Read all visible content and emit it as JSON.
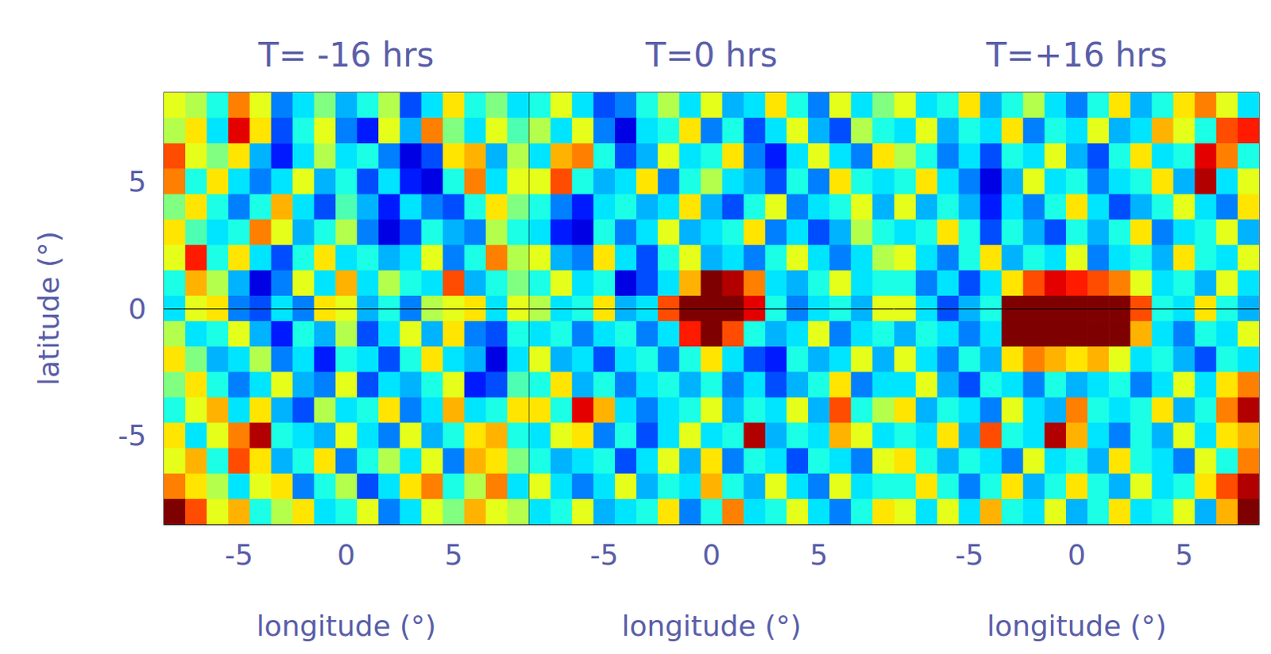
{
  "chart_data": [
    {
      "type": "heatmap",
      "title": "T= -16 hrs",
      "xlabel": "longitude (°)",
      "ylabel": "latitude (°)",
      "xlim": [
        -8.5,
        8.5
      ],
      "ylim": [
        -8.5,
        8.5
      ],
      "xticks": [
        -5,
        0,
        5
      ],
      "yticks": [
        -5,
        0,
        5
      ],
      "tick_labels": true,
      "hline": 0,
      "zlim": [
        -1,
        1
      ],
      "x": [
        -8,
        -7,
        -6,
        -5,
        -4,
        -3,
        -2,
        -1,
        0,
        1,
        2,
        3,
        4,
        5,
        6,
        7,
        8
      ],
      "y": [
        8,
        7,
        6,
        5,
        4,
        3,
        2,
        1,
        0,
        -1,
        -2,
        -3,
        -4,
        -5,
        -6,
        -7,
        -8
      ],
      "z": [
        [
          0.2,
          0.1,
          -0.2,
          0.5,
          0.2,
          -0.5,
          -0.3,
          0.0,
          -0.4,
          -0.2,
          0.1,
          -0.6,
          -0.3,
          0.3,
          -0.2,
          0.0,
          -0.3
        ],
        [
          0.1,
          0.3,
          -0.3,
          0.8,
          0.3,
          -0.6,
          -0.2,
          0.2,
          -0.5,
          -0.7,
          0.2,
          -0.4,
          0.5,
          0.0,
          -0.3,
          0.2,
          -0.1
        ],
        [
          0.6,
          0.2,
          0.0,
          0.3,
          -0.4,
          -0.7,
          -0.3,
          0.1,
          -0.3,
          -0.2,
          -0.5,
          -0.8,
          -0.6,
          0.3,
          0.4,
          -0.4,
          0.1
        ],
        [
          0.5,
          -0.2,
          0.3,
          -0.3,
          -0.5,
          -0.3,
          0.2,
          -0.4,
          -0.2,
          -0.6,
          -0.3,
          -0.7,
          -0.8,
          -0.2,
          0.5,
          -0.3,
          0.2
        ],
        [
          0.0,
          0.3,
          -0.2,
          -0.5,
          -0.2,
          0.4,
          -0.3,
          -0.6,
          -0.1,
          -0.4,
          -0.7,
          -0.3,
          -0.5,
          -0.6,
          -0.2,
          0.3,
          0.0
        ],
        [
          0.3,
          -0.1,
          -0.3,
          -0.2,
          0.5,
          0.2,
          -0.4,
          -0.2,
          0.1,
          -0.5,
          -0.8,
          -0.6,
          -0.2,
          -0.4,
          -0.5,
          0.1,
          -0.2
        ],
        [
          0.2,
          0.7,
          -0.2,
          0.3,
          -0.3,
          -0.6,
          -0.2,
          0.3,
          -0.3,
          -0.2,
          -0.4,
          -0.3,
          0.2,
          -0.5,
          -0.2,
          0.5,
          0.1
        ],
        [
          -0.2,
          0.4,
          0.1,
          -0.4,
          -0.8,
          -0.5,
          0.2,
          -0.3,
          0.4,
          -0.3,
          0.1,
          -0.2,
          -0.3,
          0.6,
          -0.4,
          -0.2,
          0.0
        ],
        [
          -0.3,
          0.2,
          0.3,
          -0.5,
          -0.6,
          -0.3,
          -0.5,
          0.3,
          0.2,
          -0.4,
          -0.2,
          -0.5,
          0.1,
          0.2,
          0.3,
          -0.3,
          0.2
        ],
        [
          0.1,
          -0.3,
          -0.2,
          0.2,
          -0.4,
          -0.7,
          -0.2,
          -0.4,
          0.1,
          -0.6,
          -0.3,
          0.2,
          -0.4,
          0.3,
          -0.5,
          -0.6,
          -0.2
        ],
        [
          0.3,
          0.0,
          -0.4,
          -0.3,
          0.1,
          -0.5,
          -0.3,
          -0.7,
          -0.2,
          -0.3,
          -0.6,
          -0.2,
          0.3,
          -0.3,
          -0.4,
          -0.8,
          -0.3
        ],
        [
          0.0,
          0.3,
          -0.2,
          -0.5,
          -0.3,
          0.2,
          -0.4,
          -0.5,
          0.2,
          -0.6,
          -0.3,
          -0.4,
          -0.2,
          0.2,
          -0.7,
          -0.6,
          -0.1
        ],
        [
          -0.2,
          0.2,
          0.4,
          -0.3,
          0.3,
          -0.4,
          -0.6,
          0.1,
          -0.3,
          -0.2,
          0.3,
          -0.5,
          -0.3,
          0.4,
          -0.3,
          -0.2,
          0.3
        ],
        [
          0.3,
          -0.3,
          0.2,
          0.5,
          0.9,
          -0.2,
          -0.3,
          -0.4,
          0.2,
          -0.3,
          -0.5,
          0.2,
          -0.4,
          -0.2,
          0.3,
          0.4,
          -0.2
        ],
        [
          0.2,
          0.4,
          -0.2,
          0.6,
          0.3,
          -0.4,
          -0.2,
          0.3,
          -0.5,
          -0.2,
          0.1,
          -0.3,
          0.2,
          -0.5,
          0.4,
          0.3,
          0.0
        ],
        [
          0.5,
          0.3,
          0.1,
          -0.3,
          0.2,
          0.3,
          -0.5,
          -0.2,
          0.1,
          -0.6,
          -0.3,
          0.3,
          0.5,
          -0.2,
          0.1,
          0.5,
          -0.3
        ],
        [
          1.0,
          0.6,
          0.2,
          0.4,
          -0.2,
          0.1,
          0.3,
          -0.3,
          -0.2,
          0.2,
          -0.5,
          -0.3,
          0.2,
          0.0,
          0.4,
          0.2,
          0.1
        ]
      ]
    },
    {
      "type": "heatmap",
      "title": "T=0 hrs",
      "xlabel": "longitude (°)",
      "xlim": [
        -8.5,
        8.5
      ],
      "ylim": [
        -8.5,
        8.5
      ],
      "xticks": [
        -5,
        0,
        5
      ],
      "yticks": [
        -5,
        0,
        5
      ],
      "tick_labels": "x",
      "hline": 0,
      "zlim": [
        -1,
        1
      ],
      "x": [
        -8,
        -7,
        -6,
        -5,
        -4,
        -3,
        -2,
        -1,
        0,
        1,
        2,
        3,
        4,
        5,
        6,
        7,
        8
      ],
      "y": [
        8,
        7,
        6,
        5,
        4,
        3,
        2,
        1,
        0,
        -1,
        -2,
        -3,
        -4,
        -5,
        -6,
        -7,
        -8
      ],
      "z": [
        [
          -0.2,
          0.2,
          -0.3,
          -0.6,
          -0.5,
          -0.2,
          0.1,
          -0.3,
          0.2,
          -0.4,
          -0.3,
          0.3,
          -0.2,
          -0.5,
          0.2,
          -0.3,
          0.0
        ],
        [
          0.1,
          -0.3,
          0.2,
          -0.5,
          -0.8,
          -0.3,
          -0.2,
          0.3,
          -0.5,
          -0.2,
          -0.6,
          -0.3,
          0.2,
          -0.4,
          -0.6,
          0.1,
          -0.2
        ],
        [
          -0.3,
          0.4,
          0.5,
          -0.2,
          -0.6,
          -0.4,
          0.2,
          -0.3,
          -0.2,
          0.3,
          -0.5,
          -0.7,
          -0.3,
          0.2,
          -0.3,
          -0.5,
          0.3
        ],
        [
          0.2,
          0.6,
          -0.2,
          -0.4,
          -0.3,
          0.3,
          -0.5,
          -0.2,
          0.1,
          -0.3,
          -0.4,
          -0.6,
          -0.2,
          -0.5,
          0.3,
          -0.2,
          -0.3
        ],
        [
          -0.2,
          -0.5,
          -0.7,
          -0.3,
          -0.2,
          -0.4,
          -0.3,
          0.3,
          -0.4,
          -0.6,
          -0.2,
          0.2,
          -0.5,
          -0.3,
          -0.2,
          0.2,
          -0.4
        ],
        [
          -0.3,
          -0.7,
          -0.8,
          -0.2,
          -0.5,
          -0.3,
          0.2,
          -0.4,
          -0.3,
          -0.2,
          0.3,
          -0.5,
          -0.3,
          -0.6,
          -0.4,
          0.1,
          -0.2
        ],
        [
          0.2,
          -0.4,
          -0.5,
          0.3,
          -0.3,
          -0.6,
          -0.2,
          0.2,
          -0.4,
          -0.3,
          -0.5,
          -0.2,
          0.2,
          -0.3,
          -0.5,
          -0.3,
          0.1
        ],
        [
          -0.2,
          0.2,
          -0.3,
          -0.2,
          -0.8,
          -0.6,
          -0.3,
          0.4,
          1.0,
          0.9,
          0.5,
          -0.3,
          -0.4,
          -0.2,
          0.2,
          -0.3,
          -0.2
        ],
        [
          0.1,
          -0.3,
          -0.2,
          0.3,
          -0.4,
          -0.3,
          0.6,
          1.0,
          1.0,
          1.0,
          0.8,
          -0.2,
          -0.5,
          -0.3,
          -0.2,
          -0.4,
          0.2
        ],
        [
          -0.3,
          -0.2,
          -0.5,
          -0.3,
          -0.2,
          -0.5,
          -0.3,
          0.7,
          1.0,
          0.6,
          -0.2,
          -0.4,
          -0.3,
          0.2,
          -0.5,
          -0.3,
          -0.2
        ],
        [
          0.2,
          -0.4,
          -0.3,
          -0.6,
          -0.3,
          -0.2,
          -0.5,
          -0.2,
          0.3,
          -0.3,
          -0.6,
          -0.7,
          -0.2,
          -0.4,
          -0.3,
          0.2,
          -0.4
        ],
        [
          -0.2,
          0.3,
          -0.4,
          -0.2,
          -0.5,
          -0.3,
          -0.2,
          -0.4,
          -0.2,
          -0.5,
          -0.3,
          -0.6,
          -0.4,
          -0.2,
          0.3,
          -0.5,
          -0.3
        ],
        [
          0.3,
          -0.2,
          0.8,
          0.4,
          -0.3,
          -0.5,
          -0.3,
          -0.2,
          0.2,
          -0.4,
          -0.2,
          -0.3,
          0.2,
          -0.4,
          0.6,
          -0.2,
          0.1
        ],
        [
          -0.3,
          0.2,
          0.3,
          -0.5,
          -0.2,
          -0.6,
          -0.3,
          0.2,
          -0.3,
          -0.2,
          0.9,
          -0.4,
          -0.2,
          -0.3,
          0.4,
          0.2,
          -0.3
        ],
        [
          -0.2,
          -0.4,
          -0.3,
          -0.2,
          -0.6,
          -0.3,
          0.2,
          -0.4,
          0.3,
          -0.5,
          -0.2,
          -0.3,
          -0.6,
          -0.2,
          -0.3,
          -0.5,
          0.2
        ],
        [
          0.2,
          -0.3,
          -0.5,
          -0.3,
          0.2,
          -0.4,
          -0.2,
          -0.3,
          0.4,
          -0.2,
          -0.4,
          0.2,
          -0.3,
          -0.5,
          0.2,
          -0.3,
          -0.2
        ],
        [
          -0.3,
          -0.2,
          0.2,
          -0.4,
          -0.3,
          -0.2,
          0.3,
          -0.5,
          -0.2,
          0.5,
          -0.3,
          -0.2,
          0.2,
          -0.3,
          -0.5,
          -0.2,
          0.3
        ]
      ]
    },
    {
      "type": "heatmap",
      "title": "T=+16 hrs",
      "xlabel": "longitude (°)",
      "xlim": [
        -8.5,
        8.5
      ],
      "ylim": [
        -8.5,
        8.5
      ],
      "xticks": [
        -5,
        0,
        5
      ],
      "yticks": [
        -5,
        0,
        5
      ],
      "tick_labels": "x",
      "hline": 0,
      "zlim": [
        -1,
        1
      ],
      "x": [
        -8,
        -7,
        -6,
        -5,
        -4,
        -3,
        -2,
        -1,
        0,
        1,
        2,
        3,
        4,
        5,
        6,
        7,
        8
      ],
      "y": [
        8,
        7,
        6,
        5,
        4,
        3,
        2,
        1,
        0,
        -1,
        -2,
        -3,
        -4,
        -5,
        -6,
        -7,
        -8
      ],
      "z": [
        [
          0.2,
          -0.3,
          -0.2,
          0.3,
          -0.4,
          -0.2,
          0.1,
          -0.3,
          -0.5,
          -0.2,
          0.3,
          -0.4,
          -0.2,
          0.3,
          0.5,
          0.2,
          -0.3
        ],
        [
          -0.3,
          0.2,
          -0.4,
          -0.2,
          -0.3,
          0.3,
          -0.5,
          -0.2,
          -0.3,
          0.2,
          -0.4,
          -0.3,
          0.4,
          0.2,
          -0.2,
          0.6,
          0.7
        ],
        [
          0.1,
          -0.2,
          -0.5,
          -0.3,
          -0.6,
          -0.2,
          -0.3,
          0.2,
          -0.4,
          -0.6,
          -0.2,
          0.3,
          -0.3,
          -0.2,
          0.8,
          0.5,
          -0.2
        ],
        [
          -0.2,
          0.3,
          -0.3,
          -0.5,
          -0.8,
          -0.4,
          0.2,
          -0.3,
          -0.2,
          -0.5,
          -0.3,
          -0.2,
          0.3,
          -0.4,
          0.9,
          -0.3,
          0.2
        ],
        [
          0.2,
          -0.4,
          -0.2,
          -0.4,
          -0.7,
          -0.3,
          -0.5,
          -0.2,
          0.3,
          -0.3,
          -0.6,
          -0.4,
          -0.2,
          0.2,
          -0.3,
          -0.5,
          0.3
        ],
        [
          -0.3,
          -0.2,
          0.3,
          -0.2,
          -0.6,
          -0.2,
          -0.4,
          -0.6,
          -0.2,
          -0.4,
          -0.2,
          0.3,
          -0.5,
          -0.3,
          -0.2,
          0.2,
          -0.4
        ],
        [
          0.2,
          -0.3,
          -0.5,
          -0.2,
          0.3,
          -0.4,
          -0.2,
          -0.3,
          0.2,
          -0.5,
          -0.3,
          -0.2,
          -0.4,
          0.3,
          -0.2,
          -0.3,
          0.2
        ],
        [
          -0.2,
          -0.5,
          -0.3,
          -0.6,
          -0.3,
          0.3,
          0.6,
          0.8,
          0.7,
          0.6,
          0.5,
          0.2,
          -0.3,
          -0.2,
          -0.4,
          0.2,
          -0.3
        ],
        [
          0.2,
          -0.3,
          -0.6,
          -0.4,
          -0.2,
          1.0,
          1.0,
          1.0,
          1.0,
          1.0,
          1.0,
          0.6,
          -0.2,
          -0.3,
          0.3,
          -0.2,
          -0.4
        ],
        [
          -0.4,
          -0.2,
          -0.3,
          -0.5,
          -0.3,
          1.0,
          1.0,
          1.0,
          1.0,
          1.0,
          1.0,
          0.4,
          -0.3,
          -0.5,
          -0.2,
          -0.3,
          0.2
        ],
        [
          0.2,
          -0.3,
          -0.5,
          -0.2,
          -0.4,
          0.3,
          0.5,
          0.4,
          0.3,
          0.4,
          0.2,
          -0.3,
          -0.2,
          -0.4,
          -0.6,
          -0.2,
          -0.3
        ],
        [
          -0.3,
          0.2,
          -0.4,
          -0.6,
          -0.2,
          -0.3,
          -0.5,
          -0.2,
          -0.4,
          -0.3,
          -0.2,
          -0.5,
          -0.3,
          0.2,
          -0.3,
          0.3,
          0.5
        ],
        [
          0.3,
          -0.4,
          -0.2,
          -0.3,
          -0.5,
          0.2,
          -0.3,
          -0.4,
          0.5,
          -0.2,
          -0.3,
          -0.2,
          0.3,
          -0.4,
          -0.2,
          0.5,
          0.9
        ],
        [
          -0.2,
          -0.3,
          0.3,
          -0.4,
          0.6,
          -0.2,
          -0.3,
          0.9,
          0.4,
          -0.3,
          -0.5,
          -0.2,
          -0.4,
          0.2,
          -0.3,
          0.3,
          0.4
        ],
        [
          0.3,
          -0.2,
          -0.4,
          -0.2,
          -0.3,
          -0.5,
          0.2,
          -0.3,
          -0.2,
          -0.4,
          0.3,
          -0.2,
          -0.3,
          -0.5,
          0.2,
          -0.2,
          0.5
        ],
        [
          -0.2,
          0.3,
          -0.2,
          -0.5,
          -0.2,
          0.3,
          -0.4,
          -0.2,
          0.3,
          -0.2,
          -0.4,
          0.2,
          -0.3,
          -0.2,
          0.3,
          0.6,
          0.9
        ],
        [
          0.2,
          -0.3,
          0.2,
          -0.3,
          0.4,
          -0.2,
          -0.3,
          0.2,
          -0.4,
          -0.2,
          0.3,
          -0.3,
          -0.2,
          0.2,
          -0.4,
          0.4,
          1.0
        ]
      ]
    }
  ]
}
